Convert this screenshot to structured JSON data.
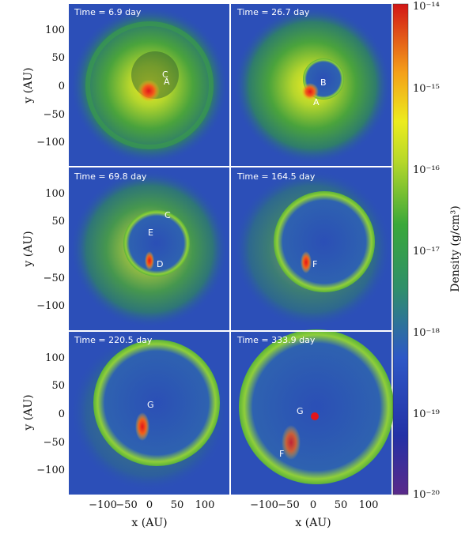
{
  "figure": {
    "panels": [
      {
        "time_label": "Time = 6.9 day",
        "markers": [
          "C",
          "A"
        ]
      },
      {
        "time_label": "Time = 26.7 day",
        "markers": [
          "B",
          "A"
        ]
      },
      {
        "time_label": "Time = 69.8 day",
        "markers": [
          "C",
          "E",
          "D"
        ]
      },
      {
        "time_label": "Time = 164.5 day",
        "markers": [
          "F"
        ]
      },
      {
        "time_label": "Time = 220.5 day",
        "markers": [
          "G"
        ]
      },
      {
        "time_label": "Time = 333.9 day",
        "markers": [
          "G",
          "F"
        ]
      }
    ],
    "x_axis": {
      "label": "x  (AU)",
      "ticks": [
        "−100",
        "−50",
        "0",
        "50",
        "100"
      ]
    },
    "y_axis": {
      "label": "y  (AU)",
      "ticks": [
        "100",
        "50",
        "0",
        "−50",
        "−100"
      ]
    },
    "colorbar": {
      "label": "Density  (g/cm³)",
      "ticks": [
        "10⁻¹⁴",
        "10⁻¹⁵",
        "10⁻¹⁶",
        "10⁻¹⁷",
        "10⁻¹⁸",
        "10⁻¹⁹",
        "10⁻²⁰"
      ],
      "scale": "log"
    },
    "colors": {
      "background_blue": "#2c4fb8",
      "mid_green": "#33a23a",
      "yellow": "#e8e81c",
      "orange": "#f39a1a",
      "red": "#d81f1f"
    }
  }
}
